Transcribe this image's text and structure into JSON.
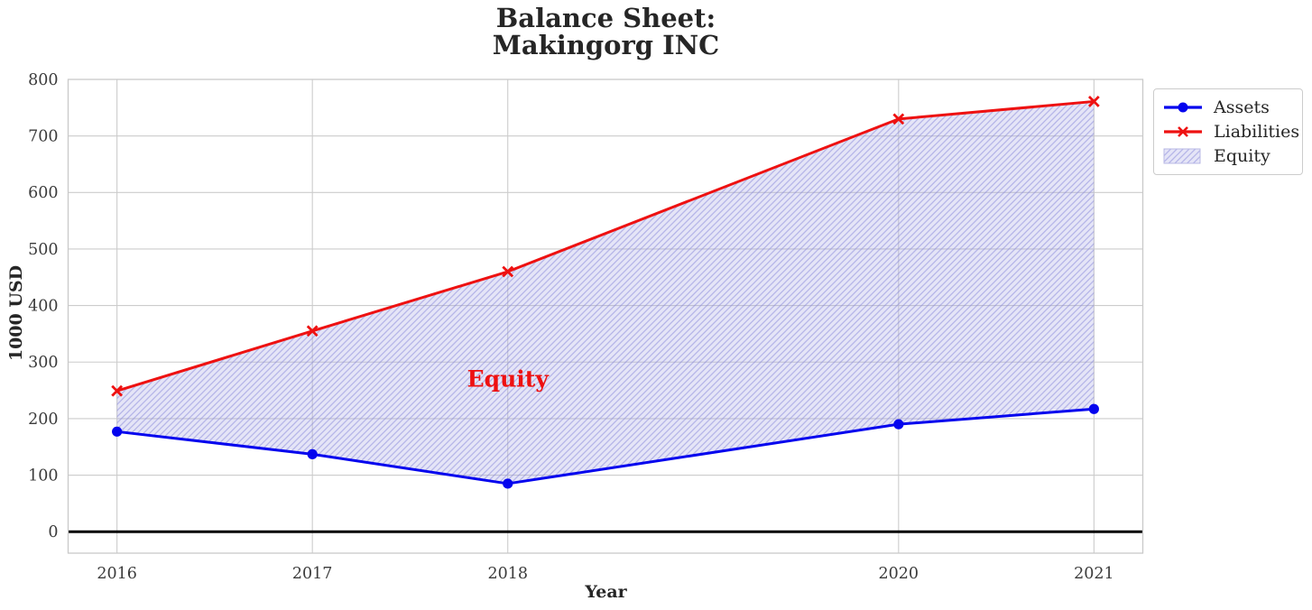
{
  "chart_data": {
    "type": "line",
    "title_lines": [
      "Balance Sheet:",
      "Makingorg INC"
    ],
    "title": "Balance Sheet:\nMakingorg INC",
    "xlabel": "Year",
    "ylabel": "1000 USD",
    "x": [
      2016,
      2017,
      2018,
      2020,
      2021
    ],
    "series": [
      {
        "name": "Assets",
        "color": "#0404ee",
        "marker": "circle",
        "values": [
          177,
          137,
          85,
          190,
          217
        ]
      },
      {
        "name": "Liabilities",
        "color": "#ee1111",
        "marker": "x",
        "values": [
          249,
          355,
          460,
          730,
          761
        ]
      }
    ],
    "fill_between": {
      "label": "Equity",
      "facecolor": "#9f9fe0",
      "face_opacity": 0.28,
      "hatch_color": "#8484d8",
      "hatch_opacity": 0.55,
      "edge_color": "#b9b9e6",
      "hatch_style": "/"
    },
    "annotation": {
      "text": "Equity",
      "x": 2018,
      "y": 270,
      "color": "#ee1111"
    },
    "axes": {
      "xlim": [
        2015.75,
        2021.25
      ],
      "ylim": [
        -38,
        800
      ],
      "xticks": [
        2016,
        2017,
        2018,
        2020,
        2021
      ],
      "yticks": [
        0,
        100,
        200,
        300,
        400,
        500,
        600,
        700,
        800
      ],
      "grid": true,
      "grid_color": "#cccccc",
      "spine_color": "#c9c9c9",
      "tick_color": "#3b3b3b",
      "zero_line_color": "#000000"
    },
    "legend": {
      "position": "upper-right-outside",
      "entries": [
        "Assets",
        "Liabilities",
        "Equity"
      ]
    }
  }
}
